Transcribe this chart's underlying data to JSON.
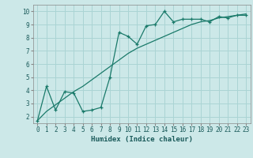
{
  "xlabel": "Humidex (Indice chaleur)",
  "bg_color": "#cce8e8",
  "grid_color": "#aad4d4",
  "line_color": "#1a7a6a",
  "xlim": [
    -0.5,
    23.5
  ],
  "ylim": [
    1.5,
    10.5
  ],
  "xticks": [
    0,
    1,
    2,
    3,
    4,
    5,
    6,
    7,
    8,
    9,
    10,
    11,
    12,
    13,
    14,
    15,
    16,
    17,
    18,
    19,
    20,
    21,
    22,
    23
  ],
  "yticks": [
    2,
    3,
    4,
    5,
    6,
    7,
    8,
    9,
    10
  ],
  "line1_x": [
    0,
    1,
    2,
    3,
    4,
    5,
    6,
    7,
    8,
    9,
    10,
    11,
    12,
    13,
    14,
    15,
    16,
    17,
    18,
    19,
    20,
    21,
    22,
    23
  ],
  "line1_y": [
    1.7,
    4.3,
    2.5,
    3.9,
    3.8,
    2.4,
    2.5,
    2.7,
    5.0,
    8.4,
    8.1,
    7.5,
    8.9,
    9.0,
    10.0,
    9.2,
    9.4,
    9.4,
    9.4,
    9.2,
    9.6,
    9.5,
    9.7,
    9.7
  ],
  "line2_x": [
    0,
    1,
    2,
    3,
    4,
    5,
    6,
    7,
    8,
    9,
    10,
    11,
    12,
    13,
    14,
    15,
    16,
    17,
    18,
    19,
    20,
    21,
    22,
    23
  ],
  "line2_y": [
    1.7,
    2.4,
    2.9,
    3.4,
    3.9,
    4.3,
    4.8,
    5.3,
    5.8,
    6.3,
    6.8,
    7.2,
    7.5,
    7.8,
    8.1,
    8.4,
    8.7,
    9.0,
    9.2,
    9.3,
    9.5,
    9.6,
    9.7,
    9.8
  ],
  "tick_fontsize": 5.5,
  "xlabel_fontsize": 6.5
}
